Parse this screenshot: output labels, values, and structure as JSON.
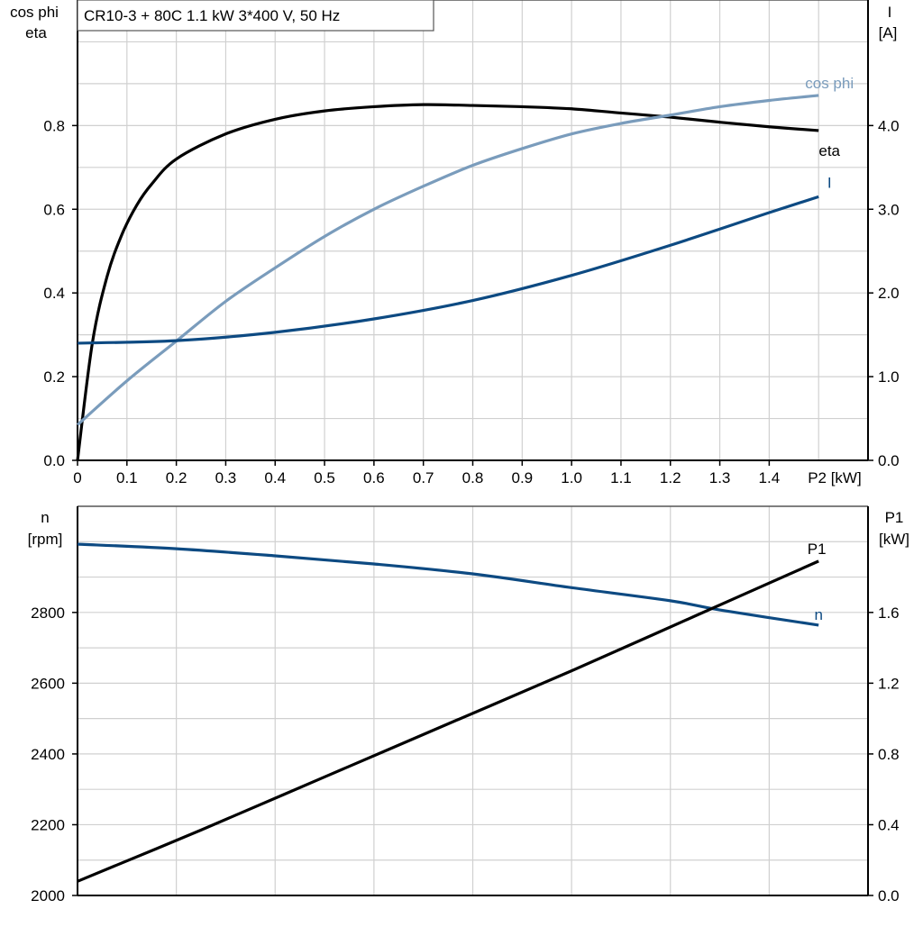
{
  "title": "CR10-3 + 80C   1.1 kW   3*400 V, 50 Hz",
  "colors": {
    "eta": "#000000",
    "cos_phi": "#7a9cbc",
    "I": "#0d4a82",
    "n": "#0d4a82",
    "P1": "#000000",
    "grid": "#d0d0d0"
  },
  "chart_data": [
    {
      "type": "line",
      "x_label": "P2 [kW]",
      "x_ticks": [
        "0",
        "0.1",
        "0.2",
        "0.3",
        "0.4",
        "0.5",
        "0.6",
        "0.7",
        "0.8",
        "0.9",
        "1.0",
        "1.1",
        "1.2",
        "1.3",
        "1.4"
      ],
      "xlim": [
        0,
        1.6
      ],
      "left_axis": {
        "label_line1": "cos phi",
        "label_line2": "eta",
        "ylim": [
          0,
          1.1
        ],
        "ticks": [
          "0.0",
          "0.2",
          "0.4",
          "0.6",
          "0.8"
        ]
      },
      "right_axis": {
        "label_line1": "I",
        "label_line2": "[A]",
        "ylim": [
          0,
          5.5
        ],
        "ticks": [
          "0.0",
          "1.0",
          "2.0",
          "3.0",
          "4.0"
        ]
      },
      "grid": true,
      "series": [
        {
          "name": "eta",
          "axis": "left",
          "x": [
            0,
            0.03,
            0.06,
            0.09,
            0.12,
            0.15,
            0.2,
            0.3,
            0.4,
            0.5,
            0.6,
            0.7,
            0.8,
            0.9,
            1.0,
            1.1,
            1.2,
            1.3,
            1.4,
            1.5
          ],
          "y": [
            0,
            0.28,
            0.44,
            0.54,
            0.61,
            0.66,
            0.72,
            0.78,
            0.815,
            0.835,
            0.845,
            0.85,
            0.848,
            0.845,
            0.84,
            0.83,
            0.82,
            0.808,
            0.797,
            0.788
          ]
        },
        {
          "name": "cos phi",
          "axis": "left",
          "x": [
            0,
            0.1,
            0.2,
            0.3,
            0.4,
            0.5,
            0.6,
            0.7,
            0.8,
            0.9,
            1.0,
            1.1,
            1.2,
            1.3,
            1.4,
            1.5
          ],
          "y": [
            0.085,
            0.19,
            0.285,
            0.38,
            0.46,
            0.535,
            0.6,
            0.655,
            0.705,
            0.745,
            0.78,
            0.805,
            0.825,
            0.845,
            0.86,
            0.872
          ]
        },
        {
          "name": "I",
          "axis": "right",
          "x": [
            0,
            0.2,
            0.4,
            0.6,
            0.8,
            1.0,
            1.2,
            1.4,
            1.5
          ],
          "y": [
            1.4,
            1.43,
            1.53,
            1.69,
            1.91,
            2.21,
            2.57,
            2.96,
            3.15
          ]
        }
      ]
    },
    {
      "type": "line",
      "xlim": [
        0,
        1.6
      ],
      "left_axis": {
        "label_line1": "n",
        "label_line2": "[rpm]",
        "ylim": [
          2000,
          3100
        ],
        "ticks": [
          "2000",
          "2200",
          "2400",
          "2600",
          "2800"
        ]
      },
      "right_axis": {
        "label_line1": "P1",
        "label_line2": "[kW]",
        "ylim": [
          0,
          2.2
        ],
        "ticks": [
          "0.0",
          "0.4",
          "0.8",
          "1.2",
          "1.6"
        ]
      },
      "grid": true,
      "series": [
        {
          "name": "n",
          "axis": "left",
          "x": [
            0,
            0.2,
            0.4,
            0.6,
            0.8,
            1.0,
            1.2,
            1.3,
            1.5
          ],
          "y": [
            2993,
            2980,
            2960,
            2937,
            2909,
            2870,
            2833,
            2807,
            2764
          ]
        },
        {
          "name": "P1",
          "axis": "right",
          "x": [
            0,
            0.25,
            0.5,
            0.75,
            1.0,
            1.25,
            1.5
          ],
          "y": [
            0.08,
            0.37,
            0.67,
            0.97,
            1.27,
            1.58,
            1.89
          ]
        }
      ]
    }
  ]
}
